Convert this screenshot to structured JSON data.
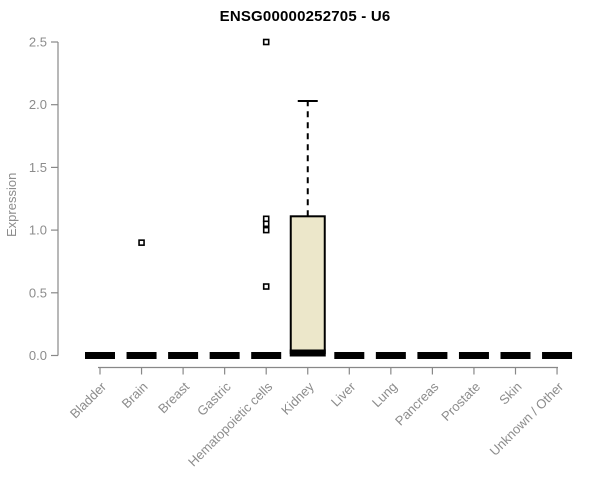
{
  "chart_data": {
    "type": "boxplot",
    "title": "ENSG00000252705 - U6",
    "ylabel": "Expression",
    "xlabel": "",
    "ylim": [
      0,
      2.5
    ],
    "yticks": [
      0,
      0.5,
      1,
      1.5,
      2,
      2.5
    ],
    "grid": false,
    "legend": "none",
    "categories": [
      "Bladder",
      "Brain",
      "Breast",
      "Gastric",
      "Hematopoietic cells",
      "Kidney",
      "Liver",
      "Lung",
      "Pancreas",
      "Prostate",
      "Skin",
      "Unknown / Other"
    ],
    "series": [
      {
        "category": "Bladder",
        "median": 0,
        "q1": 0,
        "q3": 0,
        "whisker_low": 0,
        "whisker_high": 0,
        "outliers": []
      },
      {
        "category": "Brain",
        "median": 0,
        "q1": 0,
        "q3": 0,
        "whisker_low": 0,
        "whisker_high": 0,
        "outliers": [
          0.9
        ]
      },
      {
        "category": "Breast",
        "median": 0,
        "q1": 0,
        "q3": 0,
        "whisker_low": 0,
        "whisker_high": 0,
        "outliers": []
      },
      {
        "category": "Gastric",
        "median": 0,
        "q1": 0,
        "q3": 0,
        "whisker_low": 0,
        "whisker_high": 0,
        "outliers": []
      },
      {
        "category": "Hematopoietic cells",
        "median": 0,
        "q1": 0,
        "q3": 0,
        "whisker_low": 0,
        "whisker_high": 0,
        "outliers": [
          2.5,
          1.09,
          1.05,
          1.0,
          0.55
        ]
      },
      {
        "category": "Kidney",
        "median": 0.02,
        "q1": 0.02,
        "q3": 1.11,
        "whisker_low": 0.02,
        "whisker_high": 2.03,
        "outliers": []
      },
      {
        "category": "Liver",
        "median": 0,
        "q1": 0,
        "q3": 0,
        "whisker_low": 0,
        "whisker_high": 0,
        "outliers": []
      },
      {
        "category": "Lung",
        "median": 0,
        "q1": 0,
        "q3": 0,
        "whisker_low": 0,
        "whisker_high": 0,
        "outliers": []
      },
      {
        "category": "Pancreas",
        "median": 0,
        "q1": 0,
        "q3": 0,
        "whisker_low": 0,
        "whisker_high": 0,
        "outliers": []
      },
      {
        "category": "Prostate",
        "median": 0,
        "q1": 0,
        "q3": 0,
        "whisker_low": 0,
        "whisker_high": 0,
        "outliers": []
      },
      {
        "category": "Skin",
        "median": 0,
        "q1": 0,
        "q3": 0,
        "whisker_low": 0,
        "whisker_high": 0,
        "outliers": []
      },
      {
        "category": "Unknown / Other",
        "median": 0,
        "q1": 0,
        "q3": 0,
        "whisker_low": 0,
        "whisker_high": 0,
        "outliers": []
      }
    ],
    "colors": {
      "box_fill": "#ECE7CA",
      "box_border": "#000000",
      "median": "#000000",
      "whisker": "#000000",
      "axis": "#888888",
      "tick_labels": "#8c8c8c",
      "title": "#000000",
      "outlier_fill": "#ffffff",
      "outlier_border": "#000000"
    }
  }
}
